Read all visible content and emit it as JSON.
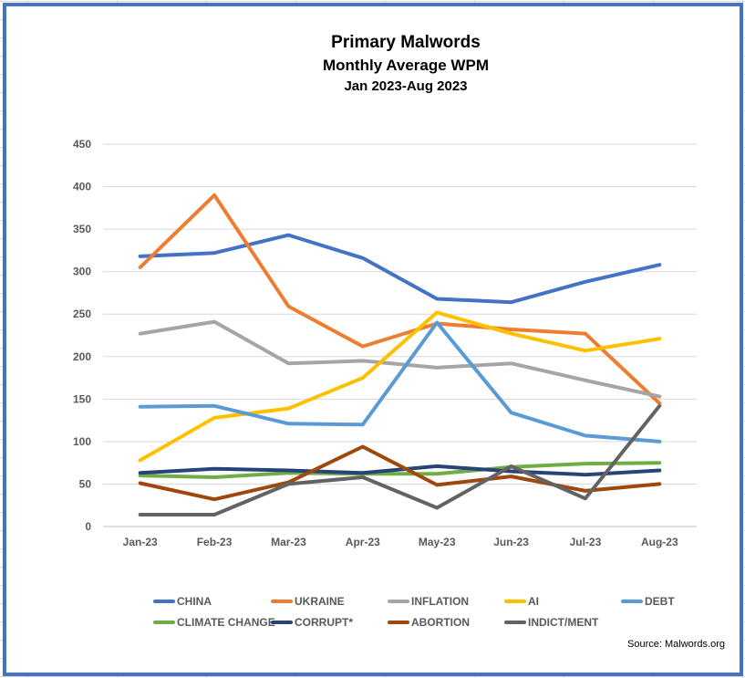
{
  "chart_data": {
    "type": "line",
    "title": "Primary Malwords",
    "subtitle": "Monthly Average WPM",
    "subtitle2": "Jan 2023-Aug 2023",
    "categories": [
      "Jan-23",
      "Feb-23",
      "Mar-23",
      "Apr-23",
      "May-23",
      "Jun-23",
      "Jul-23",
      "Aug-23"
    ],
    "ylim": [
      0,
      450
    ],
    "yticks": [
      0,
      50,
      100,
      150,
      200,
      250,
      300,
      350,
      400,
      450
    ],
    "grid": true,
    "legend_position": "bottom",
    "series": [
      {
        "name": "CHINA",
        "color": "#4472c4",
        "values": [
          318,
          322,
          343,
          316,
          268,
          264,
          288,
          308
        ]
      },
      {
        "name": "UKRAINE",
        "color": "#ed7d31",
        "values": [
          305,
          390,
          259,
          212,
          239,
          232,
          227,
          145
        ]
      },
      {
        "name": "INFLATION",
        "color": "#a5a5a5",
        "values": [
          227,
          241,
          192,
          195,
          187,
          192,
          172,
          153
        ]
      },
      {
        "name": "AI",
        "color": "#ffc000",
        "values": [
          78,
          128,
          139,
          175,
          252,
          227,
          207,
          221
        ]
      },
      {
        "name": "DEBT",
        "color": "#5b9bd5",
        "values": [
          141,
          142,
          121,
          120,
          240,
          134,
          107,
          100
        ]
      },
      {
        "name": "CLIMATE CHANGE",
        "color": "#70ad47",
        "values": [
          60,
          58,
          63,
          62,
          62,
          70,
          74,
          75
        ]
      },
      {
        "name": "CORRUPT*",
        "color": "#264478",
        "values": [
          63,
          68,
          66,
          63,
          71,
          65,
          61,
          66
        ]
      },
      {
        "name": "ABORTION",
        "color": "#9e480e",
        "values": [
          51,
          32,
          52,
          94,
          49,
          59,
          42,
          50
        ]
      },
      {
        "name": "INDICT/MENT",
        "color": "#636363",
        "values": [
          14,
          14,
          50,
          58,
          22,
          71,
          33,
          142
        ]
      }
    ],
    "source": "Source: Malwords.org"
  }
}
